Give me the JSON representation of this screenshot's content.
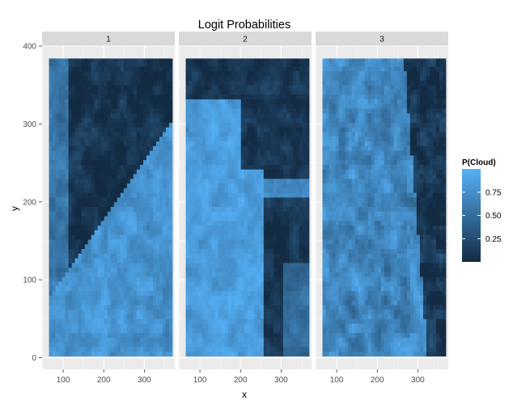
{
  "chart_data": {
    "type": "heatmap",
    "title": "Logit Probabilities",
    "xlabel": "x",
    "ylabel": "y",
    "xlim": [
      48,
      375
    ],
    "ylim": [
      -15,
      400
    ],
    "x_ticks": [
      100,
      200,
      300
    ],
    "y_ticks": [
      0,
      100,
      200,
      300,
      400
    ],
    "grid": true,
    "panels": [
      {
        "label": "1",
        "data_extent": {
          "x": [
            65,
            369
          ],
          "y": [
            2,
            384
          ]
        }
      },
      {
        "label": "2",
        "data_extent": {
          "x": [
            65,
            369
          ],
          "y": [
            2,
            384
          ]
        }
      },
      {
        "label": "3",
        "data_extent": {
          "x": [
            65,
            369
          ],
          "y": [
            2,
            384
          ]
        }
      }
    ],
    "legend": {
      "title": "P(Cloud)",
      "placement": "right",
      "range": [
        0,
        1
      ],
      "breaks": [
        0.25,
        0.5,
        0.75
      ],
      "labels": [
        "0.25",
        "0.50",
        "0.75"
      ]
    },
    "colors": {
      "low": "#132B43",
      "high": "#56B1F7"
    }
  }
}
